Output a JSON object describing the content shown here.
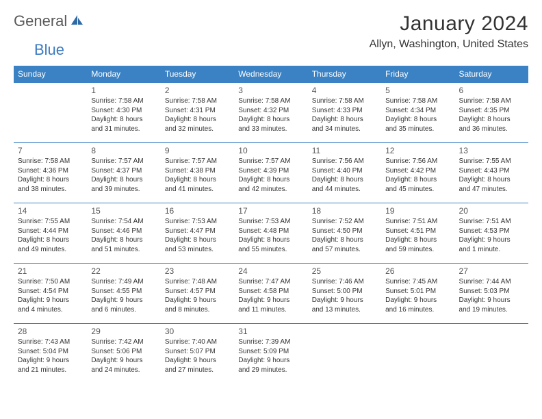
{
  "logo": {
    "text1": "General",
    "text2": "Blue"
  },
  "title": "January 2024",
  "location": "Allyn, Washington, United States",
  "day_headers": [
    "Sunday",
    "Monday",
    "Tuesday",
    "Wednesday",
    "Thursday",
    "Friday",
    "Saturday"
  ],
  "colors": {
    "header_bg": "#3a82c4",
    "header_text": "#ffffff",
    "rule": "#3a82c4",
    "body_text": "#333333",
    "logo_blue": "#3a7ac0",
    "logo_gray": "#5a5a5a"
  },
  "weeks": [
    [
      null,
      {
        "n": "1",
        "sr": "Sunrise: 7:58 AM",
        "ss": "Sunset: 4:30 PM",
        "d1": "Daylight: 8 hours",
        "d2": "and 31 minutes."
      },
      {
        "n": "2",
        "sr": "Sunrise: 7:58 AM",
        "ss": "Sunset: 4:31 PM",
        "d1": "Daylight: 8 hours",
        "d2": "and 32 minutes."
      },
      {
        "n": "3",
        "sr": "Sunrise: 7:58 AM",
        "ss": "Sunset: 4:32 PM",
        "d1": "Daylight: 8 hours",
        "d2": "and 33 minutes."
      },
      {
        "n": "4",
        "sr": "Sunrise: 7:58 AM",
        "ss": "Sunset: 4:33 PM",
        "d1": "Daylight: 8 hours",
        "d2": "and 34 minutes."
      },
      {
        "n": "5",
        "sr": "Sunrise: 7:58 AM",
        "ss": "Sunset: 4:34 PM",
        "d1": "Daylight: 8 hours",
        "d2": "and 35 minutes."
      },
      {
        "n": "6",
        "sr": "Sunrise: 7:58 AM",
        "ss": "Sunset: 4:35 PM",
        "d1": "Daylight: 8 hours",
        "d2": "and 36 minutes."
      }
    ],
    [
      {
        "n": "7",
        "sr": "Sunrise: 7:58 AM",
        "ss": "Sunset: 4:36 PM",
        "d1": "Daylight: 8 hours",
        "d2": "and 38 minutes."
      },
      {
        "n": "8",
        "sr": "Sunrise: 7:57 AM",
        "ss": "Sunset: 4:37 PM",
        "d1": "Daylight: 8 hours",
        "d2": "and 39 minutes."
      },
      {
        "n": "9",
        "sr": "Sunrise: 7:57 AM",
        "ss": "Sunset: 4:38 PM",
        "d1": "Daylight: 8 hours",
        "d2": "and 41 minutes."
      },
      {
        "n": "10",
        "sr": "Sunrise: 7:57 AM",
        "ss": "Sunset: 4:39 PM",
        "d1": "Daylight: 8 hours",
        "d2": "and 42 minutes."
      },
      {
        "n": "11",
        "sr": "Sunrise: 7:56 AM",
        "ss": "Sunset: 4:40 PM",
        "d1": "Daylight: 8 hours",
        "d2": "and 44 minutes."
      },
      {
        "n": "12",
        "sr": "Sunrise: 7:56 AM",
        "ss": "Sunset: 4:42 PM",
        "d1": "Daylight: 8 hours",
        "d2": "and 45 minutes."
      },
      {
        "n": "13",
        "sr": "Sunrise: 7:55 AM",
        "ss": "Sunset: 4:43 PM",
        "d1": "Daylight: 8 hours",
        "d2": "and 47 minutes."
      }
    ],
    [
      {
        "n": "14",
        "sr": "Sunrise: 7:55 AM",
        "ss": "Sunset: 4:44 PM",
        "d1": "Daylight: 8 hours",
        "d2": "and 49 minutes."
      },
      {
        "n": "15",
        "sr": "Sunrise: 7:54 AM",
        "ss": "Sunset: 4:46 PM",
        "d1": "Daylight: 8 hours",
        "d2": "and 51 minutes."
      },
      {
        "n": "16",
        "sr": "Sunrise: 7:53 AM",
        "ss": "Sunset: 4:47 PM",
        "d1": "Daylight: 8 hours",
        "d2": "and 53 minutes."
      },
      {
        "n": "17",
        "sr": "Sunrise: 7:53 AM",
        "ss": "Sunset: 4:48 PM",
        "d1": "Daylight: 8 hours",
        "d2": "and 55 minutes."
      },
      {
        "n": "18",
        "sr": "Sunrise: 7:52 AM",
        "ss": "Sunset: 4:50 PM",
        "d1": "Daylight: 8 hours",
        "d2": "and 57 minutes."
      },
      {
        "n": "19",
        "sr": "Sunrise: 7:51 AM",
        "ss": "Sunset: 4:51 PM",
        "d1": "Daylight: 8 hours",
        "d2": "and 59 minutes."
      },
      {
        "n": "20",
        "sr": "Sunrise: 7:51 AM",
        "ss": "Sunset: 4:53 PM",
        "d1": "Daylight: 9 hours",
        "d2": "and 1 minute."
      }
    ],
    [
      {
        "n": "21",
        "sr": "Sunrise: 7:50 AM",
        "ss": "Sunset: 4:54 PM",
        "d1": "Daylight: 9 hours",
        "d2": "and 4 minutes."
      },
      {
        "n": "22",
        "sr": "Sunrise: 7:49 AM",
        "ss": "Sunset: 4:55 PM",
        "d1": "Daylight: 9 hours",
        "d2": "and 6 minutes."
      },
      {
        "n": "23",
        "sr": "Sunrise: 7:48 AM",
        "ss": "Sunset: 4:57 PM",
        "d1": "Daylight: 9 hours",
        "d2": "and 8 minutes."
      },
      {
        "n": "24",
        "sr": "Sunrise: 7:47 AM",
        "ss": "Sunset: 4:58 PM",
        "d1": "Daylight: 9 hours",
        "d2": "and 11 minutes."
      },
      {
        "n": "25",
        "sr": "Sunrise: 7:46 AM",
        "ss": "Sunset: 5:00 PM",
        "d1": "Daylight: 9 hours",
        "d2": "and 13 minutes."
      },
      {
        "n": "26",
        "sr": "Sunrise: 7:45 AM",
        "ss": "Sunset: 5:01 PM",
        "d1": "Daylight: 9 hours",
        "d2": "and 16 minutes."
      },
      {
        "n": "27",
        "sr": "Sunrise: 7:44 AM",
        "ss": "Sunset: 5:03 PM",
        "d1": "Daylight: 9 hours",
        "d2": "and 19 minutes."
      }
    ],
    [
      {
        "n": "28",
        "sr": "Sunrise: 7:43 AM",
        "ss": "Sunset: 5:04 PM",
        "d1": "Daylight: 9 hours",
        "d2": "and 21 minutes."
      },
      {
        "n": "29",
        "sr": "Sunrise: 7:42 AM",
        "ss": "Sunset: 5:06 PM",
        "d1": "Daylight: 9 hours",
        "d2": "and 24 minutes."
      },
      {
        "n": "30",
        "sr": "Sunrise: 7:40 AM",
        "ss": "Sunset: 5:07 PM",
        "d1": "Daylight: 9 hours",
        "d2": "and 27 minutes."
      },
      {
        "n": "31",
        "sr": "Sunrise: 7:39 AM",
        "ss": "Sunset: 5:09 PM",
        "d1": "Daylight: 9 hours",
        "d2": "and 29 minutes."
      },
      null,
      null,
      null
    ]
  ]
}
